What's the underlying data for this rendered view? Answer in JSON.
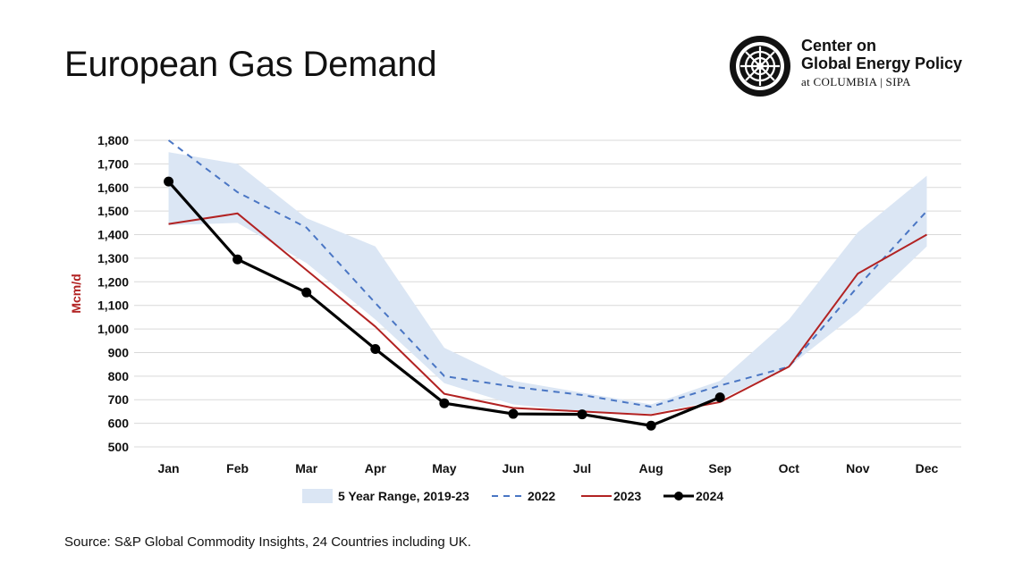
{
  "title": "European Gas Demand",
  "logo": {
    "line1": "Center on",
    "line2": "Global Energy Policy",
    "line3": "at COLUMBIA | SIPA",
    "icon": "columbia-crown-seal-icon"
  },
  "source": "Source: S&P Global Commodity Insights, 24 Countries including UK.",
  "colors": {
    "range_fill": "#dbe6f4",
    "series_2022": "#4a76c4",
    "series_2023": "#b22222",
    "series_2024": "#000000",
    "ylabel": "#b22222",
    "grid": "#d9d9d9"
  },
  "chart_data": {
    "type": "line",
    "title": "",
    "xlabel": "",
    "ylabel": "Mcm/d",
    "ylim": [
      500,
      1800
    ],
    "ytick_step": 100,
    "yticks": [
      "500",
      "600",
      "700",
      "800",
      "900",
      "1,000",
      "1,100",
      "1,200",
      "1,300",
      "1,400",
      "1,500",
      "1,600",
      "1,700",
      "1,800"
    ],
    "categories": [
      "Jan",
      "Feb",
      "Mar",
      "Apr",
      "May",
      "Jun",
      "Jul",
      "Aug",
      "Sep",
      "Oct",
      "Nov",
      "Dec"
    ],
    "grid": true,
    "legend_position": "bottom",
    "range": {
      "name": "5 Year Range, 2019-23",
      "low": [
        1440,
        1450,
        1280,
        1040,
        770,
        680,
        650,
        640,
        700,
        840,
        1070,
        1350
      ],
      "high": [
        1750,
        1700,
        1470,
        1350,
        920,
        780,
        730,
        680,
        780,
        1040,
        1410,
        1650
      ]
    },
    "series": [
      {
        "name": "2022",
        "style": "dashed",
        "values": [
          1800,
          1580,
          1430,
          1110,
          800,
          755,
          720,
          670,
          760,
          840,
          1180,
          1500
        ]
      },
      {
        "name": "2023",
        "style": "solid",
        "values": [
          1445,
          1490,
          1250,
          1010,
          725,
          665,
          650,
          635,
          690,
          840,
          1235,
          1400
        ]
      },
      {
        "name": "2024",
        "style": "solid-markers",
        "values": [
          1625,
          1295,
          1155,
          915,
          685,
          640,
          638,
          590,
          710,
          null,
          null,
          null
        ]
      }
    ]
  }
}
